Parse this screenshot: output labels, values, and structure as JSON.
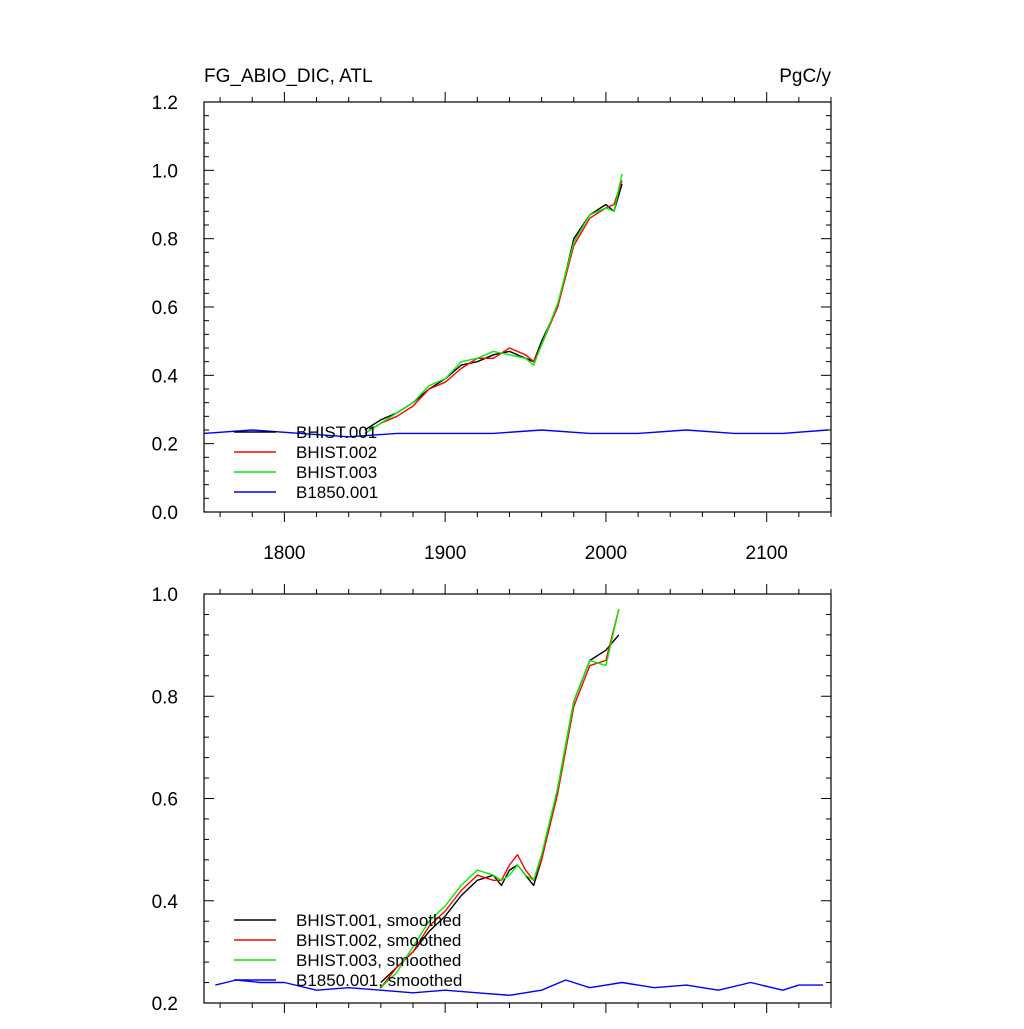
{
  "header": {
    "left_title": "FG_ABIO_DIC, ATL",
    "right_units": "PgC/y"
  },
  "colors": {
    "BHIST.001": "#000000",
    "BHIST.002": "#ff0000",
    "BHIST.003": "#00ee00",
    "B1850.001": "#0000ff"
  },
  "chart_data": [
    {
      "type": "line",
      "xlim": [
        1750,
        2140
      ],
      "ylim": [
        0.0,
        1.2
      ],
      "x_ticks": [
        1800,
        1900,
        2000,
        2100
      ],
      "x_tick_labels": [
        "1800",
        "1900",
        "2000",
        "2100"
      ],
      "y_ticks": [
        0.0,
        0.2,
        0.4,
        0.6,
        0.8,
        1.0,
        1.2
      ],
      "y_tick_labels": [
        "0.0",
        "0.2",
        "0.4",
        "0.6",
        "0.8",
        "1.0",
        "1.2"
      ],
      "legend_position": "bottom-left",
      "legend": [
        "BHIST.001",
        "BHIST.002",
        "BHIST.003",
        "B1850.001"
      ],
      "series": [
        {
          "name": "BHIST.001",
          "x": [
            1850,
            1860,
            1870,
            1880,
            1890,
            1900,
            1910,
            1920,
            1930,
            1940,
            1950,
            1955,
            1960,
            1970,
            1980,
            1990,
            2000,
            2005,
            2010
          ],
          "y": [
            0.24,
            0.27,
            0.29,
            0.32,
            0.36,
            0.39,
            0.43,
            0.44,
            0.46,
            0.47,
            0.45,
            0.44,
            0.5,
            0.6,
            0.8,
            0.87,
            0.9,
            0.88,
            0.96
          ]
        },
        {
          "name": "BHIST.002",
          "x": [
            1850,
            1860,
            1870,
            1880,
            1890,
            1900,
            1910,
            1920,
            1930,
            1940,
            1950,
            1955,
            1960,
            1970,
            1980,
            1990,
            2000,
            2005,
            2010
          ],
          "y": [
            0.23,
            0.26,
            0.28,
            0.31,
            0.36,
            0.38,
            0.42,
            0.45,
            0.45,
            0.48,
            0.46,
            0.44,
            0.49,
            0.6,
            0.78,
            0.86,
            0.89,
            0.9,
            0.97
          ]
        },
        {
          "name": "BHIST.003",
          "x": [
            1850,
            1860,
            1870,
            1880,
            1890,
            1900,
            1910,
            1920,
            1930,
            1940,
            1950,
            1955,
            1960,
            1970,
            1980,
            1990,
            2000,
            2005,
            2010
          ],
          "y": [
            0.23,
            0.26,
            0.29,
            0.32,
            0.37,
            0.39,
            0.44,
            0.45,
            0.47,
            0.46,
            0.45,
            0.43,
            0.49,
            0.61,
            0.79,
            0.87,
            0.89,
            0.88,
            0.99
          ]
        },
        {
          "name": "B1850.001",
          "x": [
            1750,
            1780,
            1810,
            1840,
            1870,
            1900,
            1930,
            1960,
            1990,
            2020,
            2050,
            2080,
            2110,
            2138
          ],
          "y": [
            0.23,
            0.24,
            0.23,
            0.22,
            0.23,
            0.23,
            0.23,
            0.24,
            0.23,
            0.23,
            0.24,
            0.23,
            0.23,
            0.24
          ]
        }
      ]
    },
    {
      "type": "line",
      "xlim": [
        1750,
        2140
      ],
      "ylim": [
        0.2,
        1.0
      ],
      "x_ticks": [
        1800,
        1900,
        2000,
        2100
      ],
      "y_ticks": [
        0.2,
        0.4,
        0.6,
        0.8,
        1.0
      ],
      "y_tick_labels": [
        "0.2",
        "0.4",
        "0.6",
        "0.8",
        "1.0"
      ],
      "legend_position": "bottom-left",
      "legend": [
        "BHIST.001, smoothed",
        "BHIST.002, smoothed",
        "BHIST.003, smoothed",
        "B1850.001, smoothed"
      ],
      "series": [
        {
          "name": "BHIST.001, smoothed",
          "x": [
            1860,
            1870,
            1880,
            1890,
            1900,
            1910,
            1920,
            1930,
            1935,
            1940,
            1945,
            1950,
            1955,
            1960,
            1970,
            1980,
            1990,
            2000,
            2008
          ],
          "y": [
            0.24,
            0.27,
            0.3,
            0.34,
            0.37,
            0.41,
            0.44,
            0.45,
            0.43,
            0.46,
            0.47,
            0.45,
            0.43,
            0.48,
            0.62,
            0.79,
            0.87,
            0.89,
            0.92
          ]
        },
        {
          "name": "BHIST.002, smoothed",
          "x": [
            1860,
            1870,
            1880,
            1890,
            1900,
            1910,
            1920,
            1930,
            1935,
            1940,
            1945,
            1950,
            1955,
            1960,
            1970,
            1980,
            1990,
            2000,
            2008
          ],
          "y": [
            0.23,
            0.27,
            0.3,
            0.35,
            0.38,
            0.42,
            0.45,
            0.44,
            0.44,
            0.47,
            0.49,
            0.46,
            0.44,
            0.48,
            0.61,
            0.78,
            0.86,
            0.87,
            0.97
          ]
        },
        {
          "name": "BHIST.003, smoothed",
          "x": [
            1860,
            1870,
            1880,
            1890,
            1900,
            1910,
            1920,
            1930,
            1935,
            1940,
            1945,
            1950,
            1955,
            1960,
            1970,
            1980,
            1990,
            2000,
            2008
          ],
          "y": [
            0.23,
            0.26,
            0.31,
            0.36,
            0.39,
            0.43,
            0.46,
            0.45,
            0.44,
            0.45,
            0.47,
            0.45,
            0.44,
            0.49,
            0.62,
            0.79,
            0.87,
            0.86,
            0.97
          ]
        },
        {
          "name": "B1850.001, smoothed",
          "x": [
            1757,
            1770,
            1785,
            1800,
            1820,
            1840,
            1860,
            1880,
            1900,
            1920,
            1940,
            1960,
            1975,
            1990,
            2010,
            2030,
            2050,
            2070,
            2090,
            2110,
            2120,
            2135
          ],
          "y": [
            0.235,
            0.245,
            0.24,
            0.24,
            0.225,
            0.23,
            0.225,
            0.22,
            0.225,
            0.22,
            0.215,
            0.225,
            0.245,
            0.23,
            0.24,
            0.23,
            0.235,
            0.225,
            0.24,
            0.225,
            0.235,
            0.235
          ]
        }
      ]
    }
  ]
}
